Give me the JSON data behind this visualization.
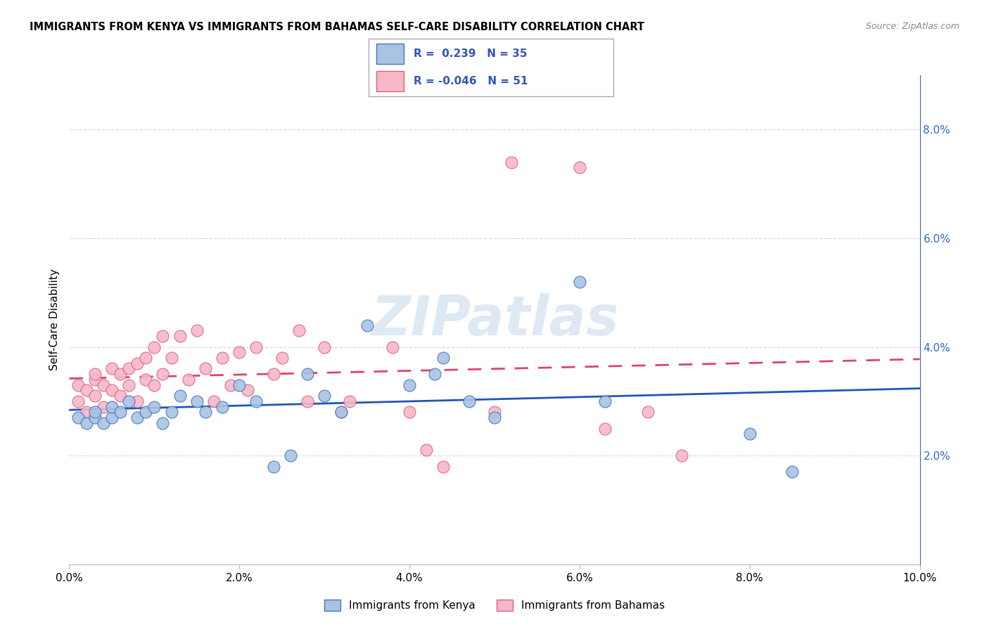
{
  "title": "IMMIGRANTS FROM KENYA VS IMMIGRANTS FROM BAHAMAS SELF-CARE DISABILITY CORRELATION CHART",
  "source": "Source: ZipAtlas.com",
  "ylabel": "Self-Care Disability",
  "xlim": [
    0.0,
    0.1
  ],
  "ylim": [
    0.0,
    0.09
  ],
  "kenya_dot_color": "#a8c4e2",
  "kenya_edge_color": "#4472c4",
  "bahamas_dot_color": "#f5b8c8",
  "bahamas_edge_color": "#e06080",
  "kenya_line_color": "#2255bb",
  "bahamas_line_color": "#dd4466",
  "legend_text_color": "#3355bb",
  "kenya_R": "0.239",
  "kenya_N": "35",
  "bahamas_R": "-0.046",
  "bahamas_N": "51",
  "kenya_x": [
    0.001,
    0.002,
    0.003,
    0.003,
    0.004,
    0.005,
    0.005,
    0.006,
    0.007,
    0.008,
    0.009,
    0.01,
    0.011,
    0.012,
    0.013,
    0.015,
    0.016,
    0.018,
    0.02,
    0.022,
    0.024,
    0.026,
    0.028,
    0.03,
    0.032,
    0.035,
    0.04,
    0.043,
    0.044,
    0.047,
    0.05,
    0.06,
    0.063,
    0.08,
    0.085
  ],
  "kenya_y": [
    0.027,
    0.026,
    0.027,
    0.028,
    0.026,
    0.027,
    0.029,
    0.028,
    0.03,
    0.027,
    0.028,
    0.029,
    0.026,
    0.028,
    0.031,
    0.03,
    0.028,
    0.029,
    0.033,
    0.03,
    0.018,
    0.02,
    0.035,
    0.031,
    0.028,
    0.044,
    0.033,
    0.035,
    0.038,
    0.03,
    0.027,
    0.052,
    0.03,
    0.024,
    0.017
  ],
  "bahamas_x": [
    0.001,
    0.001,
    0.002,
    0.002,
    0.003,
    0.003,
    0.003,
    0.004,
    0.004,
    0.005,
    0.005,
    0.006,
    0.006,
    0.007,
    0.007,
    0.008,
    0.008,
    0.009,
    0.009,
    0.01,
    0.01,
    0.011,
    0.011,
    0.012,
    0.013,
    0.014,
    0.015,
    0.016,
    0.017,
    0.018,
    0.019,
    0.02,
    0.021,
    0.022,
    0.024,
    0.025,
    0.027,
    0.028,
    0.03,
    0.032,
    0.033,
    0.038,
    0.04,
    0.042,
    0.044,
    0.05,
    0.052,
    0.06,
    0.063,
    0.068,
    0.072
  ],
  "bahamas_y": [
    0.03,
    0.033,
    0.028,
    0.032,
    0.031,
    0.034,
    0.035,
    0.029,
    0.033,
    0.032,
    0.036,
    0.031,
    0.035,
    0.033,
    0.036,
    0.03,
    0.037,
    0.034,
    0.038,
    0.033,
    0.04,
    0.035,
    0.042,
    0.038,
    0.042,
    0.034,
    0.043,
    0.036,
    0.03,
    0.038,
    0.033,
    0.039,
    0.032,
    0.04,
    0.035,
    0.038,
    0.043,
    0.03,
    0.04,
    0.028,
    0.03,
    0.04,
    0.028,
    0.021,
    0.018,
    0.028,
    0.074,
    0.073,
    0.025,
    0.028,
    0.02
  ],
  "xtick_vals": [
    0.0,
    0.02,
    0.04,
    0.06,
    0.08,
    0.1
  ],
  "xtick_labels": [
    "0.0%",
    "2.0%",
    "4.0%",
    "6.0%",
    "8.0%",
    "10.0%"
  ],
  "ytick_right_vals": [
    0.02,
    0.04,
    0.06,
    0.08
  ],
  "ytick_right_labels": [
    "2.0%",
    "4.0%",
    "6.0%",
    "8.0%"
  ],
  "grid_color": "#dddddd",
  "watermark": "ZIPatlas",
  "watermark_color": "#c5d8ec"
}
